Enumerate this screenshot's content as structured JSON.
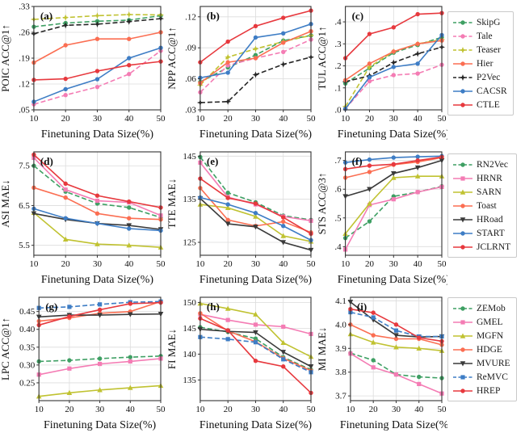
{
  "figure": {
    "xlabel": "Finetuning Data Size(%)",
    "x": [
      10,
      20,
      30,
      40,
      50
    ],
    "xtick_labels": [
      "10",
      "20",
      "30",
      "40",
      "50"
    ],
    "grid": true,
    "legend_position": "right-of-each-row"
  },
  "legends": [
    {
      "name": "trajectory-methods",
      "entries": [
        {
          "label": "SkipG",
          "color": "#3E9F63",
          "dash": "dashed",
          "marker": "circle"
        },
        {
          "label": "Tale",
          "color": "#F47CB4",
          "dash": "dashed",
          "marker": "circle"
        },
        {
          "label": "Teaser",
          "color": "#C0C231",
          "dash": "dashed",
          "marker": "star"
        },
        {
          "label": "Hier",
          "color": "#FB6E52",
          "dash": "solid",
          "marker": "circle"
        },
        {
          "label": "P2Vec",
          "color": "#262626",
          "dash": "dashed",
          "marker": "star"
        },
        {
          "label": "CACSR",
          "color": "#3E7DC5",
          "dash": "solid",
          "marker": "circle"
        },
        {
          "label": "CTLE",
          "color": "#E7393E",
          "dash": "solid",
          "marker": "circle"
        }
      ]
    },
    {
      "name": "road-methods",
      "entries": [
        {
          "label": "RN2Vec",
          "color": "#3E9F63",
          "dash": "dashed",
          "marker": "circle"
        },
        {
          "label": "HRNR",
          "color": "#F47CB4",
          "dash": "solid",
          "marker": "square"
        },
        {
          "label": "SARN",
          "color": "#C0C231",
          "dash": "solid",
          "marker": "tri-up"
        },
        {
          "label": "Toast",
          "color": "#FB6E52",
          "dash": "solid",
          "marker": "circle"
        },
        {
          "label": "HRoad",
          "color": "#3A3A3A",
          "dash": "solid",
          "marker": "tri-down"
        },
        {
          "label": "START",
          "color": "#3E7DC5",
          "dash": "solid",
          "marker": "circle"
        },
        {
          "label": "JCLRNT",
          "color": "#E7393E",
          "dash": "solid",
          "marker": "circle"
        }
      ]
    },
    {
      "name": "region-methods",
      "entries": [
        {
          "label": "ZEMob",
          "color": "#3E9F63",
          "dash": "dashed",
          "marker": "circle"
        },
        {
          "label": "GMEL",
          "color": "#F47CB4",
          "dash": "solid",
          "marker": "square"
        },
        {
          "label": "MGFN",
          "color": "#C0C231",
          "dash": "solid",
          "marker": "tri-up"
        },
        {
          "label": "HDGE",
          "color": "#FB6E52",
          "dash": "solid",
          "marker": "circle"
        },
        {
          "label": "MVURE",
          "color": "#3A3A3A",
          "dash": "solid",
          "marker": "tri-down"
        },
        {
          "label": "ReMVC",
          "color": "#3E7DC5",
          "dash": "dashed",
          "marker": "square"
        },
        {
          "label": "HREP",
          "color": "#E7393E",
          "dash": "solid",
          "marker": "circle"
        }
      ]
    }
  ],
  "chart_data": [
    {
      "type": "line",
      "tag": "(a)",
      "ylabel": "POIC ACC@1↑",
      "legend": 0,
      "ylim": [
        0.05,
        0.33
      ],
      "yticks": [
        0.05,
        0.12,
        0.19,
        0.26,
        0.33
      ],
      "ytick_labels": [
        ".05",
        ".12",
        ".19",
        ".26",
        ".33"
      ],
      "series": [
        {
          "name": "SkipG",
          "values": [
            0.275,
            0.285,
            0.29,
            0.293,
            0.305
          ]
        },
        {
          "name": "Tale",
          "values": [
            0.065,
            0.09,
            0.112,
            0.147,
            0.21
          ]
        },
        {
          "name": "Teaser",
          "values": [
            0.295,
            0.3,
            0.305,
            0.308,
            0.307
          ]
        },
        {
          "name": "P2Vec",
          "values": [
            0.256,
            0.279,
            0.282,
            0.289,
            0.297
          ]
        },
        {
          "name": "Hier",
          "values": [
            0.178,
            0.225,
            0.242,
            0.242,
            0.26
          ]
        },
        {
          "name": "CACSR",
          "values": [
            0.072,
            0.106,
            0.133,
            0.19,
            0.218
          ]
        },
        {
          "name": "CTLE",
          "values": [
            0.131,
            0.134,
            0.155,
            0.171,
            0.181
          ]
        }
      ]
    },
    {
      "type": "line",
      "tag": "(b)",
      "ylabel": "NPP ACC@1↑",
      "legend": 0,
      "ylim": [
        0.03,
        0.13
      ],
      "yticks": [
        0.03,
        0.06,
        0.09,
        0.12
      ],
      "ytick_labels": [
        ".03",
        ".06",
        ".09",
        ".12"
      ],
      "series": [
        {
          "name": "SkipG",
          "values": [
            0.057,
            0.071,
            0.083,
            0.097,
            0.102
          ]
        },
        {
          "name": "Tale",
          "values": [
            0.047,
            0.073,
            0.08,
            0.086,
            0.098
          ]
        },
        {
          "name": "Teaser",
          "values": [
            0.054,
            0.081,
            0.089,
            0.096,
            0.102
          ]
        },
        {
          "name": "P2Vec",
          "values": [
            0.037,
            0.038,
            0.064,
            0.074,
            0.081
          ]
        },
        {
          "name": "Hier",
          "values": [
            0.056,
            0.076,
            0.08,
            0.095,
            0.106
          ]
        },
        {
          "name": "CACSR",
          "values": [
            0.061,
            0.066,
            0.1,
            0.104,
            0.113
          ]
        },
        {
          "name": "CTLE",
          "values": [
            0.076,
            0.096,
            0.111,
            0.119,
            0.126
          ]
        }
      ]
    },
    {
      "type": "line",
      "tag": "(c)",
      "ylabel": "TUL ACC@1↑",
      "legend": 0,
      "ylim": [
        0.0,
        0.47
      ],
      "yticks": [
        0.0,
        0.1,
        0.2,
        0.3,
        0.4
      ],
      "ytick_labels": [
        ".0",
        ".1",
        ".2",
        ".3",
        ".4"
      ],
      "series": [
        {
          "name": "SkipG",
          "values": [
            0.12,
            0.19,
            0.26,
            0.295,
            0.33
          ]
        },
        {
          "name": "Tale",
          "values": [
            0.005,
            0.13,
            0.158,
            0.165,
            0.205
          ]
        },
        {
          "name": "Teaser",
          "values": [
            0.015,
            0.195,
            0.265,
            0.3,
            0.32
          ]
        },
        {
          "name": "P2Vec",
          "values": [
            0.128,
            0.155,
            0.215,
            0.255,
            0.285
          ]
        },
        {
          "name": "Hier",
          "values": [
            0.135,
            0.21,
            0.265,
            0.3,
            0.315
          ]
        },
        {
          "name": "CACSR",
          "values": [
            0.005,
            0.148,
            0.195,
            0.21,
            0.34
          ]
        },
        {
          "name": "CTLE",
          "values": [
            0.235,
            0.345,
            0.375,
            0.435,
            0.44
          ]
        }
      ]
    },
    {
      "type": "line",
      "tag": "(d)",
      "ylabel": "ASI MAE↓",
      "legend": 1,
      "ylim": [
        5.25,
        7.85
      ],
      "yticks": [
        5.5,
        6.5,
        7.5
      ],
      "ytick_labels": [
        "5.5",
        "6.5",
        "7.5"
      ],
      "series": [
        {
          "name": "RN2Vec",
          "values": [
            7.5,
            6.85,
            6.55,
            6.45,
            6.2
          ]
        },
        {
          "name": "HRNR",
          "values": [
            7.7,
            6.9,
            6.62,
            6.58,
            6.25
          ]
        },
        {
          "name": "SARN",
          "values": [
            6.32,
            5.65,
            5.53,
            5.5,
            5.45
          ]
        },
        {
          "name": "Toast",
          "values": [
            6.95,
            6.7,
            6.3,
            6.18,
            6.15
          ]
        },
        {
          "name": "HRoad",
          "values": [
            6.3,
            6.15,
            6.05,
            6.0,
            5.9
          ]
        },
        {
          "name": "START",
          "values": [
            6.42,
            6.18,
            6.05,
            5.92,
            5.87
          ]
        },
        {
          "name": "JCLRNT",
          "values": [
            7.78,
            7.05,
            6.75,
            6.6,
            6.45
          ]
        }
      ]
    },
    {
      "type": "line",
      "tag": "(e)",
      "ylabel": "TTE MAE↓",
      "legend": 1,
      "ylim": [
        122,
        146
      ],
      "yticks": [
        125,
        135,
        145
      ],
      "ytick_labels": [
        "125",
        "135",
        "145"
      ],
      "series": [
        {
          "name": "RN2Vec",
          "values": [
            144.8,
            136.5,
            134.3,
            131.2,
            130.2
          ]
        },
        {
          "name": "HRNR",
          "values": [
            143.5,
            135.5,
            133.8,
            131.0,
            130.0
          ]
        },
        {
          "name": "SARN",
          "values": [
            133.8,
            133.0,
            131.0,
            126.5,
            125.2
          ]
        },
        {
          "name": "Toast",
          "values": [
            137.6,
            130.2,
            128.8,
            129.8,
            127.3
          ]
        },
        {
          "name": "HRoad",
          "values": [
            135.2,
            129.3,
            128.6,
            125.0,
            123.2
          ]
        },
        {
          "name": "START",
          "values": [
            135.4,
            133.8,
            131.8,
            128.8,
            125.5
          ]
        },
        {
          "name": "JCLRNT",
          "values": [
            139.8,
            135.3,
            134.0,
            130.8,
            127.0
          ]
        }
      ]
    },
    {
      "type": "line",
      "tag": "(f)",
      "ylabel": "STS ACC@3↑",
      "legend": 1,
      "ylim": [
        0.37,
        0.73
      ],
      "yticks": [
        0.4,
        0.5,
        0.6,
        0.7
      ],
      "ytick_labels": [
        ".4",
        ".5",
        ".6",
        ".7"
      ],
      "series": [
        {
          "name": "RN2Vec",
          "values": [
            0.43,
            0.488,
            0.575,
            0.59,
            0.61
          ]
        },
        {
          "name": "HRNR",
          "values": [
            0.39,
            0.545,
            0.565,
            0.59,
            0.608
          ]
        },
        {
          "name": "SARN",
          "values": [
            0.445,
            0.55,
            0.64,
            0.645,
            0.645
          ]
        },
        {
          "name": "Toast",
          "values": [
            0.64,
            0.66,
            0.685,
            0.695,
            0.71
          ]
        },
        {
          "name": "HRoad",
          "values": [
            0.575,
            0.6,
            0.655,
            0.675,
            0.7
          ]
        },
        {
          "name": "START",
          "values": [
            0.693,
            0.703,
            0.71,
            0.713,
            0.715
          ]
        },
        {
          "name": "JCLRNT",
          "values": [
            0.67,
            0.682,
            0.687,
            0.7,
            0.712
          ]
        }
      ]
    },
    {
      "type": "line",
      "tag": "(g)",
      "ylabel": "LPC ACC@1↑",
      "legend": 2,
      "ylim": [
        0.2,
        0.49
      ],
      "yticks": [
        0.25,
        0.3,
        0.35,
        0.4,
        0.45
      ],
      "ytick_labels": [
        "0.25",
        "0.30",
        "0.35",
        "0.40",
        "0.45"
      ],
      "series": [
        {
          "name": "ZEMob",
          "values": [
            0.31,
            0.313,
            0.318,
            0.322,
            0.325
          ]
        },
        {
          "name": "GMEL",
          "values": [
            0.273,
            0.29,
            0.303,
            0.31,
            0.318
          ]
        },
        {
          "name": "MGFN",
          "values": [
            0.212,
            0.222,
            0.23,
            0.236,
            0.242
          ]
        },
        {
          "name": "HDGE",
          "values": [
            0.423,
            0.432,
            0.445,
            0.45,
            0.478
          ]
        },
        {
          "name": "MVURE",
          "values": [
            0.435,
            0.44,
            0.44,
            0.442,
            0.443
          ]
        },
        {
          "name": "ReMVC",
          "values": [
            0.46,
            0.463,
            0.47,
            0.476,
            0.478
          ]
        },
        {
          "name": "HREP",
          "values": [
            0.412,
            0.436,
            0.455,
            0.472,
            0.475
          ]
        }
      ]
    },
    {
      "type": "line",
      "tag": "(h)",
      "ylabel": "FI MAE↓",
      "legend": 2,
      "ylim": [
        131,
        151
      ],
      "yticks": [
        135,
        140,
        145,
        150
      ],
      "ytick_labels": [
        "135",
        "140",
        "145",
        "150"
      ],
      "series": [
        {
          "name": "ZEMob",
          "values": [
            145.2,
            144.3,
            143.0,
            139.4,
            137.0
          ]
        },
        {
          "name": "GMEL",
          "values": [
            147.7,
            146.6,
            145.7,
            145.3,
            143.9
          ]
        },
        {
          "name": "MGFN",
          "values": [
            149.8,
            148.8,
            147.7,
            142.2,
            139.5
          ]
        },
        {
          "name": "HDGE",
          "values": [
            147.9,
            144.5,
            142.4,
            139.2,
            136.8
          ]
        },
        {
          "name": "MVURE",
          "values": [
            144.8,
            144.4,
            144.2,
            140.4,
            137.6
          ]
        },
        {
          "name": "ReMVC",
          "values": [
            143.3,
            142.9,
            142.3,
            139.0,
            136.5
          ]
        },
        {
          "name": "HREP",
          "values": [
            146.9,
            144.6,
            138.7,
            137.6,
            132.5
          ]
        }
      ]
    },
    {
      "type": "line",
      "tag": "(i)",
      "ylabel": "MI MAE↓",
      "legend": 2,
      "ylim": [
        3.68,
        4.115
      ],
      "yticks": [
        3.7,
        3.8,
        3.9,
        4.0,
        4.1
      ],
      "ytick_labels": [
        "3.7",
        "3.8",
        "3.9",
        "4.0",
        "4.1"
      ],
      "series": [
        {
          "name": "ZEMob",
          "values": [
            3.88,
            3.85,
            3.79,
            3.78,
            3.775
          ]
        },
        {
          "name": "GMEL",
          "values": [
            3.878,
            3.82,
            3.79,
            3.75,
            3.71
          ]
        },
        {
          "name": "MGFN",
          "values": [
            3.96,
            3.925,
            3.905,
            3.9,
            3.89
          ]
        },
        {
          "name": "HDGE",
          "values": [
            4.0,
            3.955,
            3.94,
            3.94,
            3.915
          ]
        },
        {
          "name": "MVURE",
          "values": [
            4.095,
            4.02,
            3.955,
            3.948,
            3.95
          ]
        },
        {
          "name": "ReMVC",
          "values": [
            4.052,
            4.03,
            3.975,
            3.95,
            3.95
          ]
        },
        {
          "name": "HREP",
          "values": [
            4.065,
            4.05,
            4.0,
            3.945,
            3.93
          ]
        }
      ]
    }
  ]
}
